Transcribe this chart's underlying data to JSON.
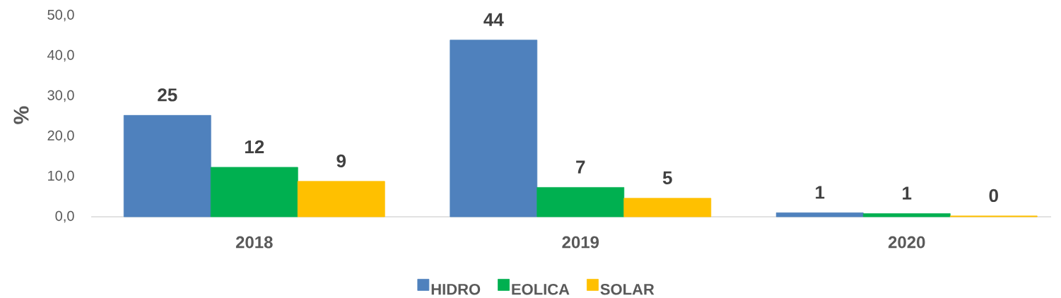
{
  "chart_data": {
    "type": "bar",
    "ylabel": "%",
    "categories": [
      "2018",
      "2019",
      "2020"
    ],
    "series": [
      {
        "name": "HIDRO",
        "color": "#4f81bd",
        "values": [
          25.2,
          43.9,
          1.0
        ],
        "value_labels": [
          "25",
          "44",
          "1"
        ]
      },
      {
        "name": "EOLICA",
        "color": "#00b050",
        "values": [
          12.3,
          7.3,
          0.8
        ],
        "value_labels": [
          "12",
          "7",
          "1"
        ]
      },
      {
        "name": "SOLAR",
        "color": "#ffc000",
        "values": [
          8.8,
          4.6,
          0.2
        ],
        "value_labels": [
          "9",
          "5",
          "0"
        ]
      }
    ],
    "ylim": [
      0,
      50
    ],
    "yticks": [
      {
        "value": 0,
        "label": "0,0"
      },
      {
        "value": 10,
        "label": "10,0"
      },
      {
        "value": 20,
        "label": "20,0"
      },
      {
        "value": 30,
        "label": "30,0"
      },
      {
        "value": 40,
        "label": "40,0"
      },
      {
        "value": 50,
        "label": "50,0"
      }
    ],
    "legend": "bottom"
  }
}
